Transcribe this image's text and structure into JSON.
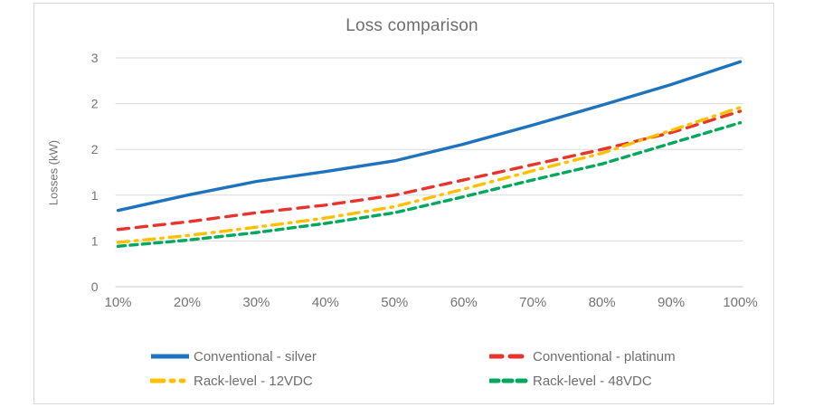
{
  "chart_data": {
    "type": "line",
    "title": "Loss comparison",
    "ylabel": "Losses (kW)",
    "xlabel": "",
    "categories": [
      "10%",
      "20%",
      "30%",
      "40%",
      "50%",
      "60%",
      "70%",
      "80%",
      "90%",
      "100%"
    ],
    "ylim": [
      0,
      3
    ],
    "y_gridline_values": [
      0,
      0.6,
      1.2,
      1.8,
      2.4,
      3
    ],
    "y_tick_labels": [
      "0",
      "1",
      "1",
      "2",
      "2",
      "3"
    ],
    "grid": "horizontal",
    "legend_position": "bottom",
    "colors": {
      "gridline": "#d9d9d9",
      "baseline": "#c8c8c8",
      "axis_text": "#747474",
      "title_text": "#6e6e6e"
    },
    "series": [
      {
        "name": "Conventional - silver",
        "color": "#1e73be",
        "dash": "solid",
        "values": [
          1.0,
          1.2,
          1.38,
          1.51,
          1.65,
          1.87,
          2.12,
          2.38,
          2.65,
          2.95
        ]
      },
      {
        "name": "Conventional - platinum",
        "color": "#e7342c",
        "dash": "long-dash",
        "values": [
          0.75,
          0.85,
          0.97,
          1.07,
          1.2,
          1.4,
          1.6,
          1.8,
          2.02,
          2.3
        ]
      },
      {
        "name": "Rack-level - 12VDC",
        "color": "#ffc000",
        "dash": "dash-dot",
        "values": [
          0.58,
          0.67,
          0.78,
          0.9,
          1.05,
          1.28,
          1.52,
          1.75,
          2.05,
          2.35
        ]
      },
      {
        "name": "Rack-level - 48VDC",
        "color": "#00a85d",
        "dash": "dash",
        "values": [
          0.53,
          0.61,
          0.71,
          0.83,
          0.97,
          1.18,
          1.4,
          1.61,
          1.88,
          2.15
        ]
      }
    ]
  }
}
